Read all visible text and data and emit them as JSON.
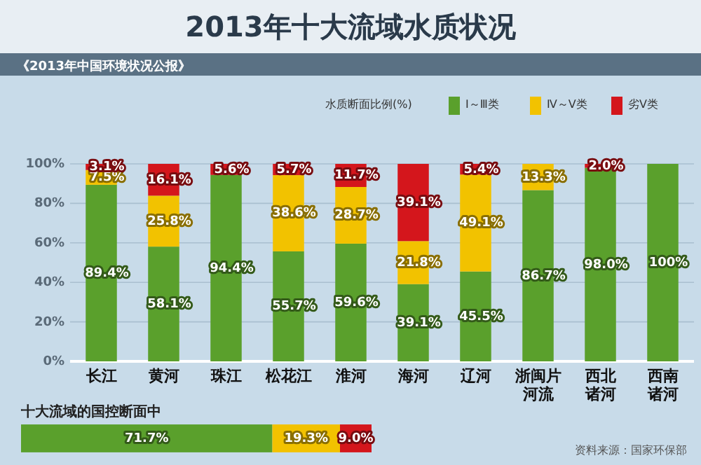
{
  "chart_data": [
    {
      "type": "bar",
      "title": "2013年十大流域水质状况",
      "subtitle": "《2013年中国环境状况公报》",
      "legend_title": "水质断面比例(%)",
      "stacked": true,
      "categories": [
        "长江",
        "黄河",
        "珠江",
        "松花江",
        "淮河",
        "海河",
        "辽河",
        "浙闽片河流",
        "西北诸河",
        "西南诸河"
      ],
      "series": [
        {
          "name": "Ⅰ～Ⅲ类",
          "color": "#5aa02c",
          "values": [
            89.4,
            58.1,
            94.4,
            55.7,
            59.6,
            39.1,
            45.5,
            86.7,
            98.0,
            100
          ],
          "value_labels": [
            "89.4%",
            "58.1%",
            "94.4%",
            "55.7%",
            "59.6%",
            "39.1%",
            "45.5%",
            "86.7%",
            "98.0%",
            "100%"
          ]
        },
        {
          "name": "Ⅳ～Ⅴ类",
          "color": "#f2c200",
          "values": [
            7.5,
            25.8,
            0,
            38.6,
            28.7,
            21.8,
            49.1,
            13.3,
            0,
            0
          ],
          "value_labels": [
            "7.5%",
            "25.8%",
            null,
            "38.6%",
            "28.7%",
            "21.8%",
            "49.1%",
            "13.3%",
            null,
            null
          ]
        },
        {
          "name": "劣Ⅴ类",
          "color": "#d4161c",
          "values": [
            3.1,
            16.1,
            5.6,
            5.7,
            11.7,
            39.1,
            5.4,
            0,
            2.0,
            0
          ],
          "value_labels": [
            "3.1%",
            "16.1%",
            "5.6%",
            "5.7%",
            "11.7%",
            "39.1%",
            "5.4%",
            null,
            "2.0%",
            null
          ]
        }
      ],
      "ylim": [
        0,
        100
      ],
      "yticks": [
        {
          "value": 0,
          "label": "0%"
        },
        {
          "value": 20,
          "label": "20%"
        },
        {
          "value": 40,
          "label": "40%"
        },
        {
          "value": 60,
          "label": "60%"
        },
        {
          "value": 80,
          "label": "80%"
        },
        {
          "value": 100,
          "label": "100%"
        }
      ],
      "grid": "y",
      "legend": "top right",
      "annotations": [
        "资料来源：国家环保部"
      ]
    },
    {
      "type": "bar",
      "title": "十大流域的国控断面中",
      "orientation": "horizontal",
      "stacked": true,
      "categories": [
        null
      ],
      "xlim": [
        0,
        100
      ],
      "series": [
        {
          "color": "#5aa02c",
          "values": [
            71.7
          ],
          "value_labels": [
            "71.7%"
          ]
        },
        {
          "color": "#f2c200",
          "values": [
            19.3
          ],
          "value_labels": [
            "19.3%"
          ]
        },
        {
          "color": "#d4161c",
          "values": [
            9.0
          ],
          "value_labels": [
            "9.0%"
          ]
        }
      ]
    }
  ]
}
